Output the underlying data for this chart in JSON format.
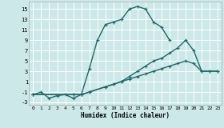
{
  "bg_color": "#cce8e8",
  "grid_color": "#b8d8d8",
  "line_color": "#1a6b6b",
  "xlabel": "Humidex (Indice chaleur)",
  "xlim": [
    -0.5,
    23.5
  ],
  "ylim": [
    -3.5,
    16.5
  ],
  "xticks": [
    0,
    1,
    2,
    3,
    4,
    5,
    6,
    7,
    8,
    9,
    10,
    11,
    12,
    13,
    14,
    15,
    16,
    17,
    18,
    19,
    20,
    21,
    22,
    23
  ],
  "yticks": [
    -3,
    -1,
    1,
    3,
    5,
    7,
    9,
    11,
    13,
    15
  ],
  "curve1_x": [
    0,
    1,
    2,
    3,
    4,
    5,
    6,
    7,
    8,
    9,
    10,
    11,
    12,
    13,
    14,
    15,
    16,
    17,
    18,
    19,
    20,
    21,
    22,
    23
  ],
  "curve1_y": [
    -1.5,
    -1.0,
    -2.2,
    -1.7,
    -1.5,
    -2.2,
    -1.5,
    3.5,
    9.0,
    12.0,
    12.5,
    13.0,
    15.0,
    15.5,
    15.0,
    12.5,
    11.5,
    9.0,
    null,
    null,
    null,
    null,
    null,
    null
  ],
  "curve2_x": [
    0,
    5,
    6,
    7,
    9,
    10,
    11,
    12,
    13,
    14,
    15,
    16,
    17,
    18,
    19,
    20,
    21,
    22,
    23
  ],
  "curve2_y": [
    -1.5,
    -1.5,
    -1.5,
    -1.0,
    0.0,
    0.5,
    1.0,
    2.0,
    3.0,
    4.0,
    5.0,
    5.5,
    6.5,
    7.5,
    9.0,
    7.0,
    3.0,
    3.0,
    3.0
  ],
  "curve3_x": [
    0,
    5,
    6,
    7,
    9,
    10,
    11,
    12,
    13,
    14,
    15,
    16,
    17,
    18,
    19,
    20,
    21,
    22,
    23
  ],
  "curve3_y": [
    -1.5,
    -1.5,
    -1.5,
    -1.0,
    0.0,
    0.5,
    1.0,
    1.5,
    2.0,
    2.5,
    3.0,
    3.5,
    4.0,
    4.5,
    5.0,
    4.5,
    3.0,
    3.0,
    3.0
  ],
  "marker": "+",
  "markersize": 3.5,
  "linewidth": 1.0
}
